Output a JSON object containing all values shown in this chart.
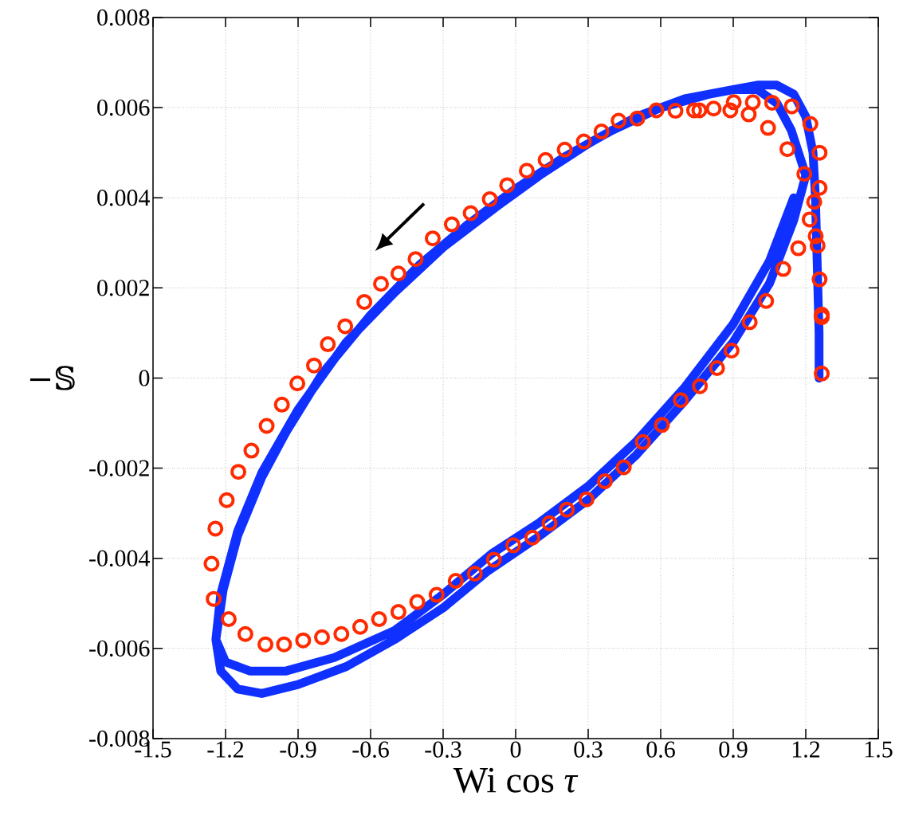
{
  "chart_data": {
    "type": "line",
    "xlabel": "Wi cos *τ*",
    "ylabel": "−𝕊",
    "xlim": [
      -1.5,
      1.5
    ],
    "ylim": [
      -0.008,
      0.008
    ],
    "xticks": [
      -1.5,
      -1.2,
      -0.9,
      -0.6,
      -0.3,
      0,
      0.3,
      0.6,
      0.9,
      1.2,
      1.5
    ],
    "yticks": [
      -0.008,
      -0.006,
      -0.004,
      -0.002,
      0,
      0.002,
      0.004,
      0.006,
      0.008
    ],
    "grid": true,
    "series": [
      {
        "type": "line",
        "color": "#1030ff",
        "marker": "none",
        "line_style": "solid",
        "x": [
          1.255,
          1.255,
          1.25,
          1.245,
          1.24,
          1.23,
          1.2,
          1.15,
          1.08,
          1.0,
          0.9,
          0.8,
          0.6,
          0.4,
          0.2,
          0,
          -0.2,
          -0.4,
          -0.6,
          -0.8,
          -0.95,
          -1.05,
          -1.15,
          -1.21,
          -1.24,
          -1.22,
          -1.15,
          -1.05,
          -0.9,
          -0.7,
          -0.5,
          -0.3,
          -0.12,
          0.1,
          0.3,
          0.5,
          0.7,
          0.9,
          1.05,
          1.15,
          1.2,
          1.14,
          1.08,
          1.0,
          0.9,
          0.7,
          0.5,
          0.3,
          0.1,
          -0.08,
          -0.3,
          -0.5,
          -0.7,
          -0.9,
          -1.05,
          -1.15,
          -1.22,
          -1.24,
          -1.2,
          -1.1,
          -0.95,
          -0.75,
          -0.5,
          -0.3,
          -0.1,
          0.1,
          0.3,
          0.5,
          0.7,
          0.9,
          1.05,
          1.15
        ],
        "values": [
          0.0,
          0.001,
          0.002,
          0.003,
          0.004,
          0.005,
          0.0058,
          0.0063,
          0.0065,
          0.0065,
          0.0064,
          0.0063,
          0.006,
          0.0055,
          0.0049,
          0.0042,
          0.0034,
          0.0025,
          0.0014,
          0.0001,
          -0.0012,
          -0.0022,
          -0.0035,
          -0.0047,
          -0.0058,
          -0.0065,
          -0.0069,
          -0.007,
          -0.0068,
          -0.0064,
          -0.0058,
          -0.0051,
          -0.0043,
          -0.0035,
          -0.0027,
          -0.0017,
          -0.0005,
          0.0008,
          0.0021,
          0.0035,
          0.0045,
          0.0055,
          0.0061,
          0.0064,
          0.0064,
          0.0062,
          0.0058,
          0.0052,
          0.0045,
          0.0038,
          0.0029,
          0.0019,
          0.0008,
          -0.0007,
          -0.0021,
          -0.0034,
          -0.0048,
          -0.0058,
          -0.0063,
          -0.0065,
          -0.0065,
          -0.0062,
          -0.0056,
          -0.0048,
          -0.0039,
          -0.0032,
          -0.0024,
          -0.0014,
          -0.0002,
          0.0012,
          0.0026,
          0.004
        ]
      },
      {
        "type": "scatter",
        "color": "#ff2a00",
        "marker": "circle",
        "x": [
          1.266,
          1.266,
          1.266,
          1.257,
          1.249,
          1.241,
          1.216,
          1.235,
          1.257,
          1.257,
          1.219,
          1.142,
          1.061,
          0.981,
          0.902,
          0.819,
          0.738,
          0.661,
          0.582,
          0.503,
          0.426,
          0.355,
          0.282,
          0.203,
          0.124,
          0.046,
          -0.035,
          -0.107,
          -0.186,
          -0.264,
          -0.343,
          -0.414,
          -0.485,
          -0.557,
          -0.626,
          -0.705,
          -0.777,
          -0.834,
          -0.903,
          -0.967,
          -1.03,
          -1.093,
          -1.147,
          -1.195,
          -1.242,
          -1.258,
          -1.249,
          -1.187,
          -1.118,
          -1.035,
          -0.958,
          -0.879,
          -0.801,
          -0.721,
          -0.643,
          -0.565,
          -0.485,
          -0.407,
          -0.327,
          -0.248,
          -0.169,
          -0.09,
          -0.01,
          0.069,
          0.14,
          0.212,
          0.293,
          0.369,
          0.447,
          0.526,
          0.605,
          0.683,
          0.762,
          0.833,
          0.893,
          0.968,
          1.036,
          1.107,
          1.169,
          1.194,
          1.124,
          1.044,
          0.964,
          0.888,
          0.76
        ],
        "values": [
          0.0001,
          0.00135,
          0.00141,
          0.00219,
          0.00294,
          0.00315,
          0.00352,
          0.00391,
          0.00422,
          0.005,
          0.00564,
          0.00603,
          0.00611,
          0.00612,
          0.00612,
          0.00598,
          0.00594,
          0.00593,
          0.00594,
          0.00576,
          0.00571,
          0.00547,
          0.00525,
          0.00507,
          0.00484,
          0.0046,
          0.00428,
          0.00397,
          0.00366,
          0.00341,
          0.0031,
          0.00264,
          0.00232,
          0.00209,
          0.00169,
          0.00115,
          0.00075,
          0.00028,
          -0.00012,
          -0.00059,
          -0.00106,
          -0.00161,
          -0.00208,
          -0.00271,
          -0.00334,
          -0.00412,
          -0.0049,
          -0.00535,
          -0.00568,
          -0.00591,
          -0.00591,
          -0.00582,
          -0.00575,
          -0.00568,
          -0.00552,
          -0.00535,
          -0.00519,
          -0.00497,
          -0.00481,
          -0.0045,
          -0.00434,
          -0.00403,
          -0.00371,
          -0.00354,
          -0.00322,
          -0.00292,
          -0.00269,
          -0.00229,
          -0.00198,
          -0.00142,
          -0.00104,
          -0.00049,
          -0.00018,
          0.00022,
          0.00061,
          0.00124,
          0.00171,
          0.00242,
          0.00288,
          0.00453,
          0.00508,
          0.00555,
          0.00585,
          0.00594,
          0.00594
        ]
      }
    ]
  }
}
